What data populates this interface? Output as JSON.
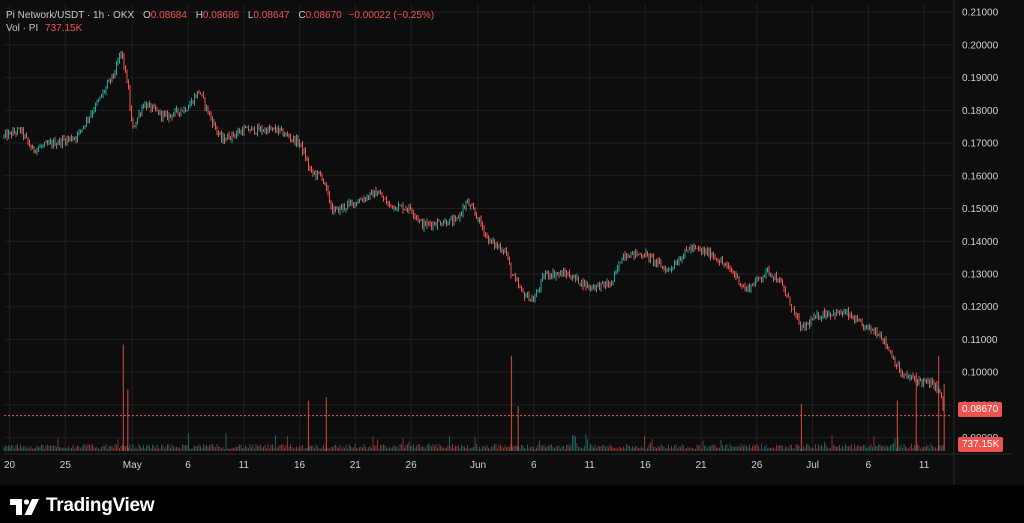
{
  "legend": {
    "symbol": "Pi Network/USDT · 1h · OKX",
    "o_label": "O",
    "o_value": "0.08684",
    "h_label": "H",
    "h_value": "0.08686",
    "l_label": "L",
    "l_value": "0.08647",
    "c_label": "C",
    "c_value": "0.08670",
    "change": "−0.00022 (−0.25%)",
    "vol_label": "Vol · PI",
    "vol_value": "737.15K"
  },
  "badges": {
    "last_price": "0.08670",
    "last_volume": "737.15K"
  },
  "brand": {
    "name": "TradingView",
    "logo_icon": "tradingview-logo-icon"
  },
  "colors": {
    "up": "#26a69a",
    "down": "#ef5350",
    "background": "#0d0d0d",
    "grid": "#1f1f1f"
  },
  "chart_data": {
    "type": "candlestick",
    "interval": "1h",
    "y_ticks": [
      "0.21000",
      "0.20000",
      "0.19000",
      "0.18000",
      "0.17000",
      "0.16000",
      "0.15000",
      "0.14000",
      "0.13000",
      "0.12000",
      "0.11000",
      "0.10000",
      "0.09000",
      "0.08000"
    ],
    "ylim": [
      0.0756,
      0.2125
    ],
    "x_ticks": [
      "20",
      "25",
      "May",
      "6",
      "11",
      "16",
      "21",
      "26",
      "Jun",
      "6",
      "11",
      "16",
      "21",
      "26",
      "Jul",
      "6",
      "11"
    ],
    "x_tick_days": [
      0,
      5,
      11,
      16,
      21,
      26,
      31,
      36,
      42,
      47,
      52,
      57,
      62,
      67,
      72,
      77,
      82
    ],
    "x_range_days": [
      -0.5,
      84.5
    ],
    "last_price": 0.0867,
    "price_path": [
      {
        "day": -0.5,
        "price": 0.172
      },
      {
        "day": 1,
        "price": 0.174
      },
      {
        "day": 2,
        "price": 0.168
      },
      {
        "day": 4,
        "price": 0.17
      },
      {
        "day": 6,
        "price": 0.172
      },
      {
        "day": 8,
        "price": 0.183
      },
      {
        "day": 9.5,
        "price": 0.192
      },
      {
        "day": 10,
        "price": 0.198
      },
      {
        "day": 10.6,
        "price": 0.188
      },
      {
        "day": 11,
        "price": 0.174
      },
      {
        "day": 12,
        "price": 0.182
      },
      {
        "day": 14,
        "price": 0.178
      },
      {
        "day": 16,
        "price": 0.181
      },
      {
        "day": 17,
        "price": 0.186
      },
      {
        "day": 18,
        "price": 0.178
      },
      {
        "day": 19,
        "price": 0.171
      },
      {
        "day": 21,
        "price": 0.174
      },
      {
        "day": 24,
        "price": 0.174
      },
      {
        "day": 26,
        "price": 0.17
      },
      {
        "day": 26.5,
        "price": 0.166
      },
      {
        "day": 27,
        "price": 0.161
      },
      {
        "day": 28,
        "price": 0.16
      },
      {
        "day": 29,
        "price": 0.149
      },
      {
        "day": 31,
        "price": 0.152
      },
      {
        "day": 33,
        "price": 0.155
      },
      {
        "day": 34,
        "price": 0.151
      },
      {
        "day": 36,
        "price": 0.15
      },
      {
        "day": 37,
        "price": 0.145
      },
      {
        "day": 39,
        "price": 0.146
      },
      {
        "day": 40,
        "price": 0.146
      },
      {
        "day": 41,
        "price": 0.152
      },
      {
        "day": 42,
        "price": 0.147
      },
      {
        "day": 43,
        "price": 0.14
      },
      {
        "day": 44.5,
        "price": 0.137
      },
      {
        "day": 45,
        "price": 0.13
      },
      {
        "day": 46,
        "price": 0.124
      },
      {
        "day": 47,
        "price": 0.122
      },
      {
        "day": 48,
        "price": 0.13
      },
      {
        "day": 50,
        "price": 0.13
      },
      {
        "day": 52,
        "price": 0.126
      },
      {
        "day": 54,
        "price": 0.127
      },
      {
        "day": 55,
        "price": 0.136
      },
      {
        "day": 57,
        "price": 0.136
      },
      {
        "day": 59,
        "price": 0.131
      },
      {
        "day": 61,
        "price": 0.138
      },
      {
        "day": 63,
        "price": 0.136
      },
      {
        "day": 64,
        "price": 0.133
      },
      {
        "day": 65,
        "price": 0.13
      },
      {
        "day": 66,
        "price": 0.125
      },
      {
        "day": 67,
        "price": 0.128
      },
      {
        "day": 68,
        "price": 0.131
      },
      {
        "day": 69,
        "price": 0.128
      },
      {
        "day": 70,
        "price": 0.121
      },
      {
        "day": 71,
        "price": 0.113
      },
      {
        "day": 72,
        "price": 0.116
      },
      {
        "day": 73,
        "price": 0.118
      },
      {
        "day": 75,
        "price": 0.118
      },
      {
        "day": 76.5,
        "price": 0.114
      },
      {
        "day": 78,
        "price": 0.112
      },
      {
        "day": 79,
        "price": 0.106
      },
      {
        "day": 80,
        "price": 0.099
      },
      {
        "day": 81,
        "price": 0.098
      },
      {
        "day": 82,
        "price": 0.097
      },
      {
        "day": 83,
        "price": 0.096
      },
      {
        "day": 83.5,
        "price": 0.093
      },
      {
        "day": 83.8,
        "price": 0.0867
      }
    ],
    "volume_spikes": [
      {
        "day": 10.2,
        "level": 0.95
      },
      {
        "day": 10.6,
        "level": 0.55
      },
      {
        "day": 26.8,
        "level": 0.45
      },
      {
        "day": 28.4,
        "level": 0.48
      },
      {
        "day": 45.0,
        "level": 0.85
      },
      {
        "day": 45.6,
        "level": 0.4
      },
      {
        "day": 71.0,
        "level": 0.42
      },
      {
        "day": 79.6,
        "level": 0.45
      },
      {
        "day": 81.3,
        "level": 0.7
      },
      {
        "day": 83.3,
        "level": 0.85
      },
      {
        "day": 83.8,
        "level": 0.6
      }
    ]
  }
}
